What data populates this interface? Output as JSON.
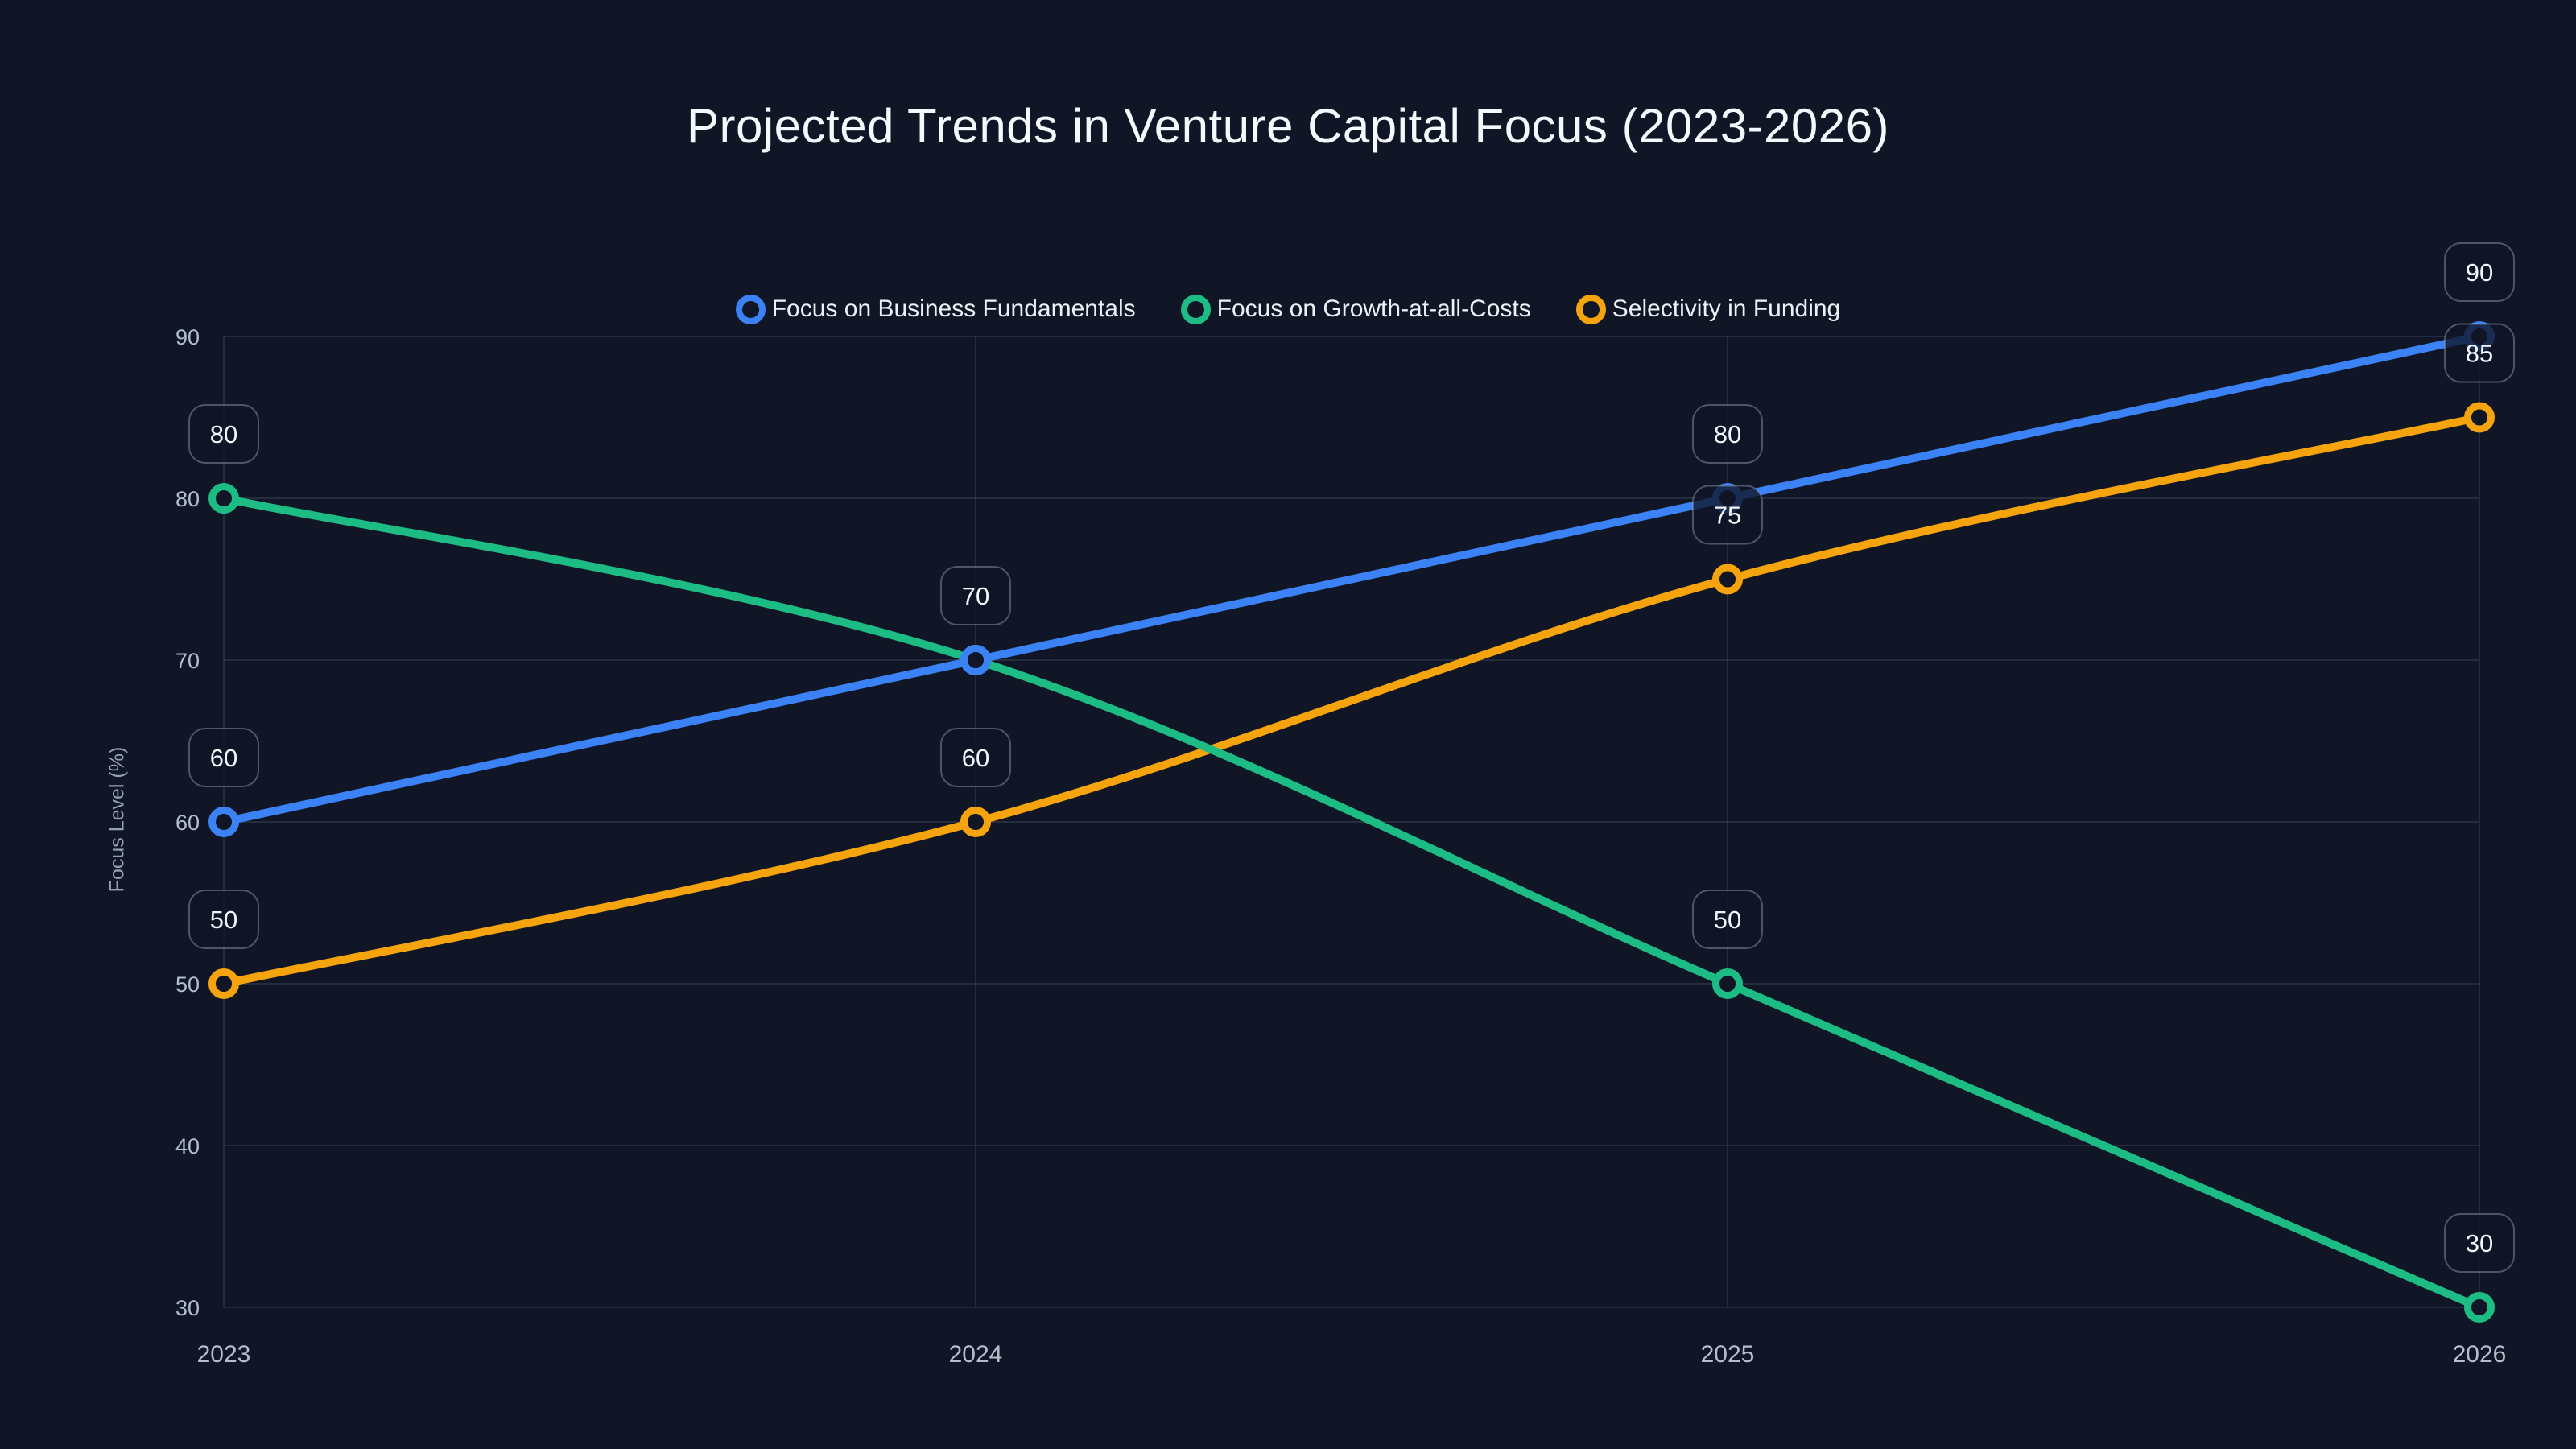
{
  "chart_data": {
    "type": "line",
    "title": "Projected Trends in Venture Capital Focus (2023-2026)",
    "xlabel": "",
    "ylabel": "Focus Level (%)",
    "x": [
      "2023",
      "2024",
      "2025",
      "2026"
    ],
    "ylim": [
      30,
      90
    ],
    "yticks": [
      90,
      80,
      70,
      60,
      50,
      40,
      30
    ],
    "grid": true,
    "legend_position": "top-center",
    "point_labels_shown": true,
    "series": [
      {
        "name": "Focus on Business Fundamentals",
        "color": "#3b82f6",
        "values": [
          60,
          70,
          80,
          90
        ]
      },
      {
        "name": "Focus on Growth-at-all-Costs",
        "color": "#1dbc85",
        "values": [
          80,
          70,
          50,
          30
        ]
      },
      {
        "name": "Selectivity in Funding",
        "color": "#f6a40d",
        "values": [
          50,
          60,
          75,
          85
        ]
      }
    ],
    "draw_order": [
      2,
      1,
      0
    ]
  },
  "colors": {
    "background": "#101626",
    "grid": "rgba(148,163,184,0.16)",
    "tick_label": "#b4bfcd",
    "axis_title": "#93a1b3",
    "legend_label": "#edf1f7",
    "badge_fill": "rgba(16,22,38,0.78)",
    "badge_border": "rgba(148,163,184,0.45)",
    "badge_text": "#f3f6fa",
    "title_text": "#f5f8fc"
  }
}
